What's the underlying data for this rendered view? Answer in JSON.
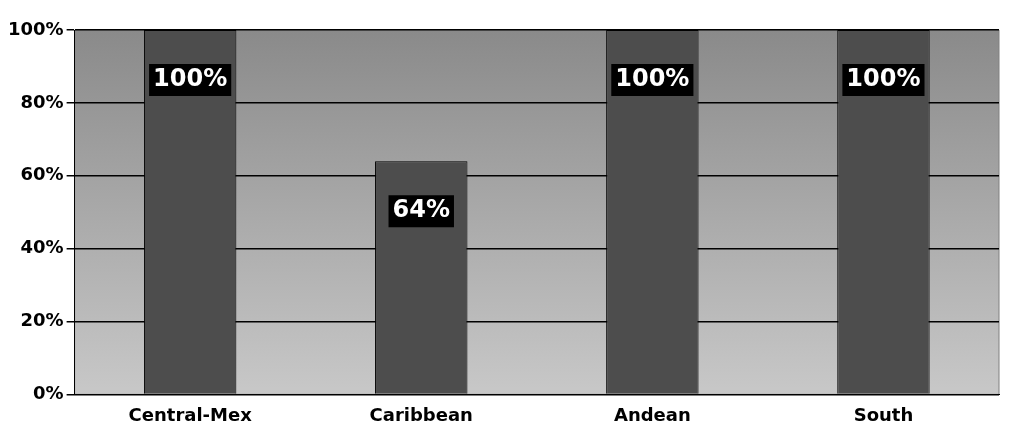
{
  "chart_data": {
    "type": "bar",
    "categories": [
      "Central-Mex",
      "Caribbean",
      "Andean",
      "South"
    ],
    "values": [
      100,
      64,
      100,
      100
    ],
    "color": "#4d4d4d",
    "value_labels": [
      "100%",
      "64%",
      "100%",
      "100%"
    ],
    "ylim": [
      0,
      100
    ],
    "yticks": [
      {
        "value": 0,
        "label": "0%"
      },
      {
        "value": 20,
        "label": "20%"
      },
      {
        "value": 40,
        "label": "40%"
      },
      {
        "value": 60,
        "label": "60%"
      },
      {
        "value": 80,
        "label": "80%"
      },
      {
        "value": 100,
        "label": "100%"
      }
    ],
    "grid": "y"
  }
}
